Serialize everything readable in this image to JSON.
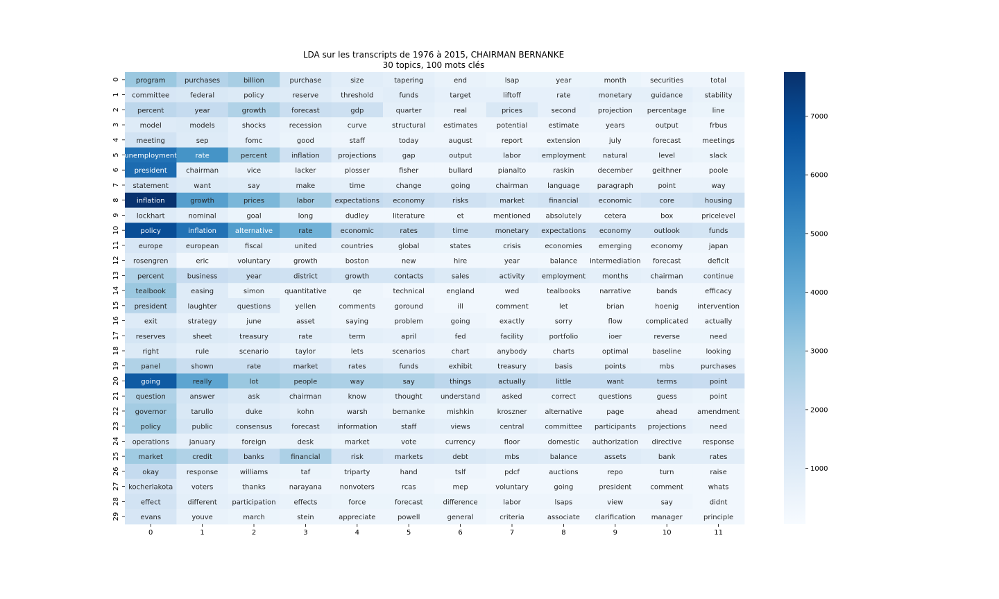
{
  "chart_data": {
    "type": "heatmap",
    "title": "LDA sur les transcripts de 1976 à 2015, CHAIRMAN BERNANKE",
    "subtitle": "30 topics, 100 mots clés",
    "x_ticks": [
      "0",
      "1",
      "2",
      "3",
      "4",
      "5",
      "6",
      "7",
      "8",
      "9",
      "10",
      "11"
    ],
    "y_ticks": [
      "0",
      "1",
      "2",
      "3",
      "4",
      "5",
      "6",
      "7",
      "8",
      "9",
      "10",
      "11",
      "12",
      "13",
      "14",
      "15",
      "16",
      "17",
      "18",
      "19",
      "20",
      "21",
      "22",
      "23",
      "24",
      "25",
      "26",
      "27",
      "28",
      "29"
    ],
    "colormap": "Blues",
    "colorbar": {
      "ticks": [
        1000,
        2000,
        3000,
        4000,
        5000,
        6000,
        7000
      ],
      "range": [
        50,
        7750
      ]
    },
    "words": [
      [
        "program",
        "purchases",
        "billion",
        "purchase",
        "size",
        "tapering",
        "end",
        "lsap",
        "year",
        "month",
        "securities",
        "total"
      ],
      [
        "committee",
        "federal",
        "policy",
        "reserve",
        "threshold",
        "funds",
        "target",
        "liftoff",
        "rate",
        "monetary",
        "guidance",
        "stability"
      ],
      [
        "percent",
        "year",
        "growth",
        "forecast",
        "gdp",
        "quarter",
        "real",
        "prices",
        "second",
        "projection",
        "percentage",
        "line"
      ],
      [
        "model",
        "models",
        "shocks",
        "recession",
        "curve",
        "structural",
        "estimates",
        "potential",
        "estimate",
        "years",
        "output",
        "frbus"
      ],
      [
        "meeting",
        "sep",
        "fomc",
        "good",
        "staff",
        "today",
        "august",
        "report",
        "extension",
        "july",
        "forecast",
        "meetings"
      ],
      [
        "unemployment",
        "rate",
        "percent",
        "inflation",
        "projections",
        "gap",
        "output",
        "labor",
        "employment",
        "natural",
        "level",
        "slack"
      ],
      [
        "president",
        "chairman",
        "vice",
        "lacker",
        "plosser",
        "fisher",
        "bullard",
        "pianalto",
        "raskin",
        "december",
        "geithner",
        "poole"
      ],
      [
        "statement",
        "want",
        "say",
        "make",
        "time",
        "change",
        "going",
        "chairman",
        "language",
        "paragraph",
        "point",
        "way"
      ],
      [
        "inflation",
        "growth",
        "prices",
        "labor",
        "expectations",
        "economy",
        "risks",
        "market",
        "financial",
        "economic",
        "core",
        "housing"
      ],
      [
        "lockhart",
        "nominal",
        "goal",
        "long",
        "dudley",
        "literature",
        "et",
        "mentioned",
        "absolutely",
        "cetera",
        "box",
        "pricelevel"
      ],
      [
        "policy",
        "inflation",
        "alternative",
        "rate",
        "economic",
        "rates",
        "time",
        "monetary",
        "expectations",
        "economy",
        "outlook",
        "funds"
      ],
      [
        "europe",
        "european",
        "fiscal",
        "united",
        "countries",
        "global",
        "states",
        "crisis",
        "economies",
        "emerging",
        "economy",
        "japan"
      ],
      [
        "rosengren",
        "eric",
        "voluntary",
        "growth",
        "boston",
        "new",
        "hire",
        "year",
        "balance",
        "intermediation",
        "forecast",
        "deficit"
      ],
      [
        "percent",
        "business",
        "year",
        "district",
        "growth",
        "contacts",
        "sales",
        "activity",
        "employment",
        "months",
        "chairman",
        "continue"
      ],
      [
        "tealbook",
        "easing",
        "simon",
        "quantitative",
        "qe",
        "technical",
        "england",
        "wed",
        "tealbooks",
        "narrative",
        "bands",
        "efficacy"
      ],
      [
        "president",
        "laughter",
        "questions",
        "yellen",
        "comments",
        "goround",
        "ill",
        "comment",
        "let",
        "brian",
        "hoenig",
        "intervention"
      ],
      [
        "exit",
        "strategy",
        "june",
        "asset",
        "saying",
        "problem",
        "going",
        "exactly",
        "sorry",
        "flow",
        "complicated",
        "actually"
      ],
      [
        "reserves",
        "sheet",
        "treasury",
        "rate",
        "term",
        "april",
        "fed",
        "facility",
        "portfolio",
        "ioer",
        "reverse",
        "need"
      ],
      [
        "right",
        "rule",
        "scenario",
        "taylor",
        "lets",
        "scenarios",
        "chart",
        "anybody",
        "charts",
        "optimal",
        "baseline",
        "looking"
      ],
      [
        "panel",
        "shown",
        "rate",
        "market",
        "rates",
        "funds",
        "exhibit",
        "treasury",
        "basis",
        "points",
        "mbs",
        "purchases"
      ],
      [
        "going",
        "really",
        "lot",
        "people",
        "way",
        "say",
        "things",
        "actually",
        "little",
        "want",
        "terms",
        "point"
      ],
      [
        "question",
        "answer",
        "ask",
        "chairman",
        "know",
        "thought",
        "understand",
        "asked",
        "correct",
        "questions",
        "guess",
        "point"
      ],
      [
        "governor",
        "tarullo",
        "duke",
        "kohn",
        "warsh",
        "bernanke",
        "mishkin",
        "kroszner",
        "alternative",
        "page",
        "ahead",
        "amendment"
      ],
      [
        "policy",
        "public",
        "consensus",
        "forecast",
        "information",
        "staff",
        "views",
        "central",
        "committee",
        "participants",
        "projections",
        "need"
      ],
      [
        "operations",
        "january",
        "foreign",
        "desk",
        "market",
        "vote",
        "currency",
        "floor",
        "domestic",
        "authorization",
        "directive",
        "response"
      ],
      [
        "market",
        "credit",
        "banks",
        "financial",
        "risk",
        "markets",
        "debt",
        "mbs",
        "balance",
        "assets",
        "bank",
        "rates"
      ],
      [
        "okay",
        "response",
        "williams",
        "taf",
        "triparty",
        "hand",
        "tslf",
        "pdcf",
        "auctions",
        "repo",
        "turn",
        "raise"
      ],
      [
        "kocherlakota",
        "voters",
        "thanks",
        "narayana",
        "nonvoters",
        "rcas",
        "mep",
        "voluntary",
        "going",
        "president",
        "comment",
        "whats"
      ],
      [
        "effect",
        "different",
        "participation",
        "effects",
        "force",
        "forecast",
        "difference",
        "labor",
        "lsaps",
        "view",
        "say",
        "didnt"
      ],
      [
        "evans",
        "youve",
        "march",
        "stein",
        "appreciate",
        "powell",
        "general",
        "criteria",
        "associate",
        "clarification",
        "manager",
        "principle"
      ]
    ],
    "values": [
      [
        3000,
        2400,
        2700,
        1200,
        900,
        800,
        600,
        500,
        500,
        500,
        400,
        400
      ],
      [
        1300,
        1200,
        1100,
        1000,
        800,
        900,
        700,
        700,
        700,
        800,
        800,
        600
      ],
      [
        2200,
        2000,
        2500,
        1800,
        1700,
        800,
        600,
        1200,
        700,
        600,
        600,
        500
      ],
      [
        1000,
        1100,
        700,
        600,
        500,
        500,
        400,
        400,
        400,
        400,
        400,
        300
      ],
      [
        1500,
        1000,
        700,
        500,
        400,
        400,
        400,
        300,
        300,
        300,
        300,
        300
      ],
      [
        5800,
        4800,
        2800,
        1600,
        900,
        700,
        700,
        700,
        800,
        600,
        600,
        500
      ],
      [
        6000,
        800,
        600,
        400,
        300,
        300,
        300,
        300,
        300,
        300,
        300,
        300
      ],
      [
        1300,
        1100,
        1000,
        900,
        800,
        700,
        700,
        700,
        700,
        600,
        600,
        600
      ],
      [
        7700,
        4400,
        3600,
        2800,
        2000,
        1800,
        1600,
        1400,
        1500,
        1300,
        1500,
        1700
      ],
      [
        1000,
        800,
        500,
        400,
        300,
        300,
        300,
        300,
        300,
        300,
        300,
        300
      ],
      [
        6900,
        5800,
        4500,
        3800,
        2200,
        2100,
        1700,
        1700,
        1600,
        1500,
        1500,
        1400
      ],
      [
        1300,
        1000,
        800,
        700,
        600,
        600,
        500,
        500,
        500,
        400,
        400,
        400
      ],
      [
        1000,
        300,
        400,
        300,
        300,
        300,
        300,
        300,
        300,
        300,
        300,
        300
      ],
      [
        2500,
        1900,
        1700,
        1600,
        1400,
        1400,
        1100,
        1000,
        900,
        800,
        700,
        700
      ],
      [
        3000,
        1000,
        500,
        400,
        400,
        300,
        300,
        300,
        300,
        300,
        300,
        300
      ],
      [
        2300,
        1000,
        1000,
        500,
        400,
        400,
        300,
        300,
        300,
        300,
        300,
        300
      ],
      [
        1000,
        700,
        500,
        500,
        400,
        400,
        400,
        300,
        300,
        300,
        300,
        300
      ],
      [
        1400,
        1100,
        1000,
        900,
        800,
        700,
        600,
        600,
        500,
        500,
        500,
        500
      ],
      [
        1100,
        800,
        700,
        500,
        400,
        400,
        400,
        300,
        300,
        300,
        300,
        300
      ],
      [
        2500,
        1800,
        1800,
        1600,
        1200,
        1000,
        900,
        900,
        800,
        800,
        700,
        700
      ],
      [
        6500,
        4200,
        3000,
        2700,
        2600,
        2500,
        2200,
        2100,
        2000,
        2000,
        2000,
        1900
      ],
      [
        2500,
        1400,
        1200,
        1000,
        900,
        800,
        800,
        600,
        600,
        600,
        600,
        500
      ],
      [
        2800,
        1200,
        900,
        800,
        700,
        600,
        500,
        500,
        400,
        400,
        400,
        400
      ],
      [
        2900,
        1400,
        1200,
        1000,
        900,
        900,
        800,
        700,
        700,
        700,
        700,
        600
      ],
      [
        1100,
        700,
        600,
        600,
        500,
        500,
        400,
        400,
        400,
        400,
        400,
        400
      ],
      [
        2900,
        2500,
        2000,
        2600,
        1500,
        1300,
        1200,
        1100,
        1000,
        1000,
        900,
        900
      ],
      [
        2000,
        800,
        600,
        500,
        400,
        400,
        400,
        300,
        300,
        300,
        300,
        300
      ],
      [
        1300,
        700,
        500,
        400,
        400,
        400,
        300,
        300,
        300,
        300,
        300,
        300
      ],
      [
        1500,
        800,
        700,
        600,
        500,
        500,
        500,
        400,
        400,
        400,
        400,
        300
      ],
      [
        1300,
        600,
        500,
        400,
        400,
        400,
        400,
        300,
        300,
        300,
        300,
        300
      ]
    ]
  }
}
